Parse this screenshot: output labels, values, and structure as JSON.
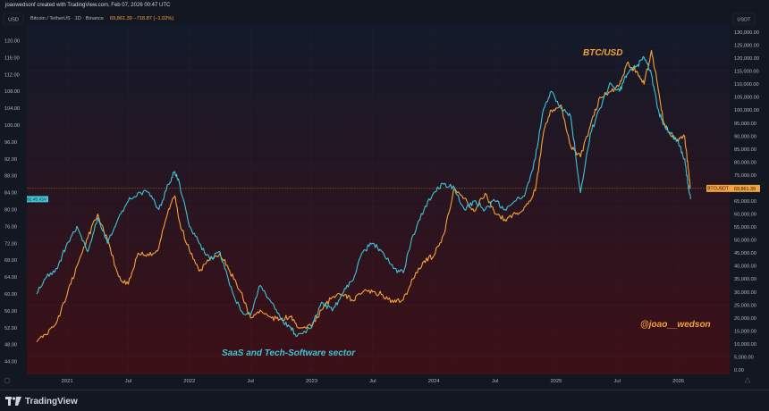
{
  "header": {
    "created_by": "joaowedsonf created with TradingView.com, Feb 07, 2026 00:47 UTC",
    "symbol_line": "Bitcoin / TetherUS · 1D · Binance",
    "ohlc_values": "69,861.39  −718.87 (−1.02%)"
  },
  "left_axis": {
    "unit": "USD"
  },
  "right_axis": {
    "unit": "USDT"
  },
  "footer": {
    "brand": "TradingView"
  },
  "labels": {
    "btc_label": "BTC/USD",
    "saas_label": "SaaS and Tech-Software sector",
    "watermark": "@joao__wedson"
  },
  "colors": {
    "btc": "#f7a23a",
    "saas": "#3ec5d6",
    "background_top": "#131a2a",
    "background_bottom": "#3d0f16"
  },
  "chart_data": {
    "type": "line",
    "x_axis": {
      "range": [
        "2020-09",
        "2026-03"
      ],
      "ticks": [
        {
          "label": "2021",
          "date": 2021.0
        },
        {
          "label": "Jul",
          "date": 2021.5
        },
        {
          "label": "2022",
          "date": 2022.0
        },
        {
          "label": "Jul",
          "date": 2022.5
        },
        {
          "label": "2023",
          "date": 2023.0
        },
        {
          "label": "Jul",
          "date": 2023.5
        },
        {
          "label": "2024",
          "date": 2024.0
        },
        {
          "label": "Jul",
          "date": 2024.5
        },
        {
          "label": "2025",
          "date": 2025.0
        },
        {
          "label": "Jul",
          "date": 2025.5
        },
        {
          "label": "2026",
          "date": 2026.0
        }
      ]
    },
    "left_axis": {
      "ylim": [
        42,
        122
      ],
      "ticks": [
        "120.00",
        "116.00",
        "112.00",
        "108.00",
        "104.00",
        "100.00",
        "96.00",
        "92.00",
        "88.00",
        "84.00",
        "80.00",
        "76.00",
        "72.00",
        "68.00",
        "64.00",
        "60.00",
        "56.00",
        "52.00",
        "48.00",
        "44.00"
      ],
      "current_value_label": "82.45",
      "current_value": 82.45,
      "current_symbol": "IGV"
    },
    "right_axis": {
      "ylim": [
        0,
        130000
      ],
      "ticks": [
        "130,000.00",
        "125,000.00",
        "120,000.00",
        "115,000.00",
        "110,000.00",
        "105,000.00",
        "100,000.00",
        "95,000.00",
        "90,000.00",
        "85,000.00",
        "80,000.00",
        "75,000.00",
        "70,000.00",
        "65,000.00",
        "60,000.00",
        "55,000.00",
        "50,000.00",
        "45,000.00",
        "40,000.00",
        "35,000.00",
        "30,000.00",
        "25,000.00",
        "20,000.00",
        "15,000.00",
        "10,000.00",
        "5,000.00",
        "0.00"
      ],
      "current_value_label": "69,861.39",
      "current_value": 69861.39,
      "current_symbol": "BTCUSDT"
    },
    "series": [
      {
        "name": "BTC/USD",
        "axis": "right",
        "points": [
          [
            2020.75,
            10800
          ],
          [
            2020.83,
            13500
          ],
          [
            2020.92,
            19000
          ],
          [
            2021.0,
            29000
          ],
          [
            2021.08,
            40000
          ],
          [
            2021.17,
            51000
          ],
          [
            2021.25,
            60000
          ],
          [
            2021.33,
            50000
          ],
          [
            2021.42,
            36000
          ],
          [
            2021.5,
            33000
          ],
          [
            2021.58,
            45000
          ],
          [
            2021.67,
            44000
          ],
          [
            2021.75,
            47000
          ],
          [
            2021.83,
            62000
          ],
          [
            2021.88,
            67000
          ],
          [
            2021.92,
            57000
          ],
          [
            2022.0,
            46000
          ],
          [
            2022.08,
            38000
          ],
          [
            2022.17,
            43000
          ],
          [
            2022.25,
            45000
          ],
          [
            2022.33,
            38000
          ],
          [
            2022.42,
            30000
          ],
          [
            2022.5,
            20000
          ],
          [
            2022.58,
            23000
          ],
          [
            2022.67,
            20000
          ],
          [
            2022.75,
            19500
          ],
          [
            2022.83,
            20500
          ],
          [
            2022.88,
            16500
          ],
          [
            2023.0,
            16600
          ],
          [
            2023.08,
            23000
          ],
          [
            2023.17,
            28000
          ],
          [
            2023.25,
            29000
          ],
          [
            2023.33,
            27000
          ],
          [
            2023.42,
            30000
          ],
          [
            2023.5,
            30000
          ],
          [
            2023.58,
            29000
          ],
          [
            2023.67,
            26000
          ],
          [
            2023.75,
            27000
          ],
          [
            2023.83,
            35000
          ],
          [
            2023.92,
            42000
          ],
          [
            2024.0,
            44000
          ],
          [
            2024.08,
            52000
          ],
          [
            2024.17,
            70000
          ],
          [
            2024.25,
            66000
          ],
          [
            2024.33,
            61000
          ],
          [
            2024.42,
            68000
          ],
          [
            2024.5,
            60000
          ],
          [
            2024.58,
            58000
          ],
          [
            2024.67,
            60000
          ],
          [
            2024.75,
            63000
          ],
          [
            2024.83,
            69000
          ],
          [
            2024.9,
            92000
          ],
          [
            2024.96,
            100000
          ],
          [
            2025.04,
            102000
          ],
          [
            2025.12,
            86000
          ],
          [
            2025.2,
            82000
          ],
          [
            2025.28,
            94000
          ],
          [
            2025.36,
            105000
          ],
          [
            2025.44,
            107000
          ],
          [
            2025.52,
            110000
          ],
          [
            2025.58,
            118000
          ],
          [
            2025.66,
            115000
          ],
          [
            2025.72,
            110000
          ],
          [
            2025.78,
            123000
          ],
          [
            2025.83,
            110000
          ],
          [
            2025.88,
            95000
          ],
          [
            2025.94,
            90000
          ],
          [
            2026.0,
            88000
          ],
          [
            2026.05,
            90000
          ],
          [
            2026.08,
            78000
          ],
          [
            2026.1,
            69861
          ]
        ]
      },
      {
        "name": "SaaS and Tech-Software sector",
        "axis": "left",
        "points": [
          [
            2020.75,
            60
          ],
          [
            2020.83,
            64
          ],
          [
            2020.92,
            66
          ],
          [
            2021.0,
            72
          ],
          [
            2021.08,
            76
          ],
          [
            2021.17,
            70
          ],
          [
            2021.25,
            78
          ],
          [
            2021.33,
            72
          ],
          [
            2021.42,
            78
          ],
          [
            2021.5,
            82
          ],
          [
            2021.58,
            84
          ],
          [
            2021.67,
            84
          ],
          [
            2021.75,
            80
          ],
          [
            2021.83,
            86
          ],
          [
            2021.88,
            89
          ],
          [
            2021.92,
            86
          ],
          [
            2022.0,
            76
          ],
          [
            2022.08,
            72
          ],
          [
            2022.17,
            68
          ],
          [
            2022.25,
            70
          ],
          [
            2022.33,
            62
          ],
          [
            2022.42,
            56
          ],
          [
            2022.5,
            55
          ],
          [
            2022.58,
            62
          ],
          [
            2022.67,
            58
          ],
          [
            2022.75,
            54
          ],
          [
            2022.83,
            52
          ],
          [
            2022.88,
            50
          ],
          [
            2023.0,
            52
          ],
          [
            2023.08,
            58
          ],
          [
            2023.17,
            56
          ],
          [
            2023.25,
            60
          ],
          [
            2023.33,
            63
          ],
          [
            2023.42,
            70
          ],
          [
            2023.5,
            72
          ],
          [
            2023.58,
            70
          ],
          [
            2023.67,
            66
          ],
          [
            2023.75,
            65
          ],
          [
            2023.83,
            74
          ],
          [
            2023.92,
            80
          ],
          [
            2024.0,
            84
          ],
          [
            2024.08,
            86
          ],
          [
            2024.17,
            85
          ],
          [
            2024.25,
            80
          ],
          [
            2024.33,
            82
          ],
          [
            2024.42,
            80
          ],
          [
            2024.5,
            82
          ],
          [
            2024.58,
            80
          ],
          [
            2024.67,
            82
          ],
          [
            2024.75,
            84
          ],
          [
            2024.83,
            92
          ],
          [
            2024.9,
            104
          ],
          [
            2024.96,
            108
          ],
          [
            2025.04,
            104
          ],
          [
            2025.12,
            102
          ],
          [
            2025.2,
            84
          ],
          [
            2025.28,
            98
          ],
          [
            2025.36,
            104
          ],
          [
            2025.44,
            110
          ],
          [
            2025.52,
            108
          ],
          [
            2025.58,
            112
          ],
          [
            2025.66,
            114
          ],
          [
            2025.72,
            116
          ],
          [
            2025.78,
            112
          ],
          [
            2025.83,
            104
          ],
          [
            2025.88,
            100
          ],
          [
            2025.94,
            98
          ],
          [
            2026.0,
            96
          ],
          [
            2026.05,
            92
          ],
          [
            2026.08,
            86
          ],
          [
            2026.1,
            82.45
          ]
        ]
      }
    ]
  }
}
